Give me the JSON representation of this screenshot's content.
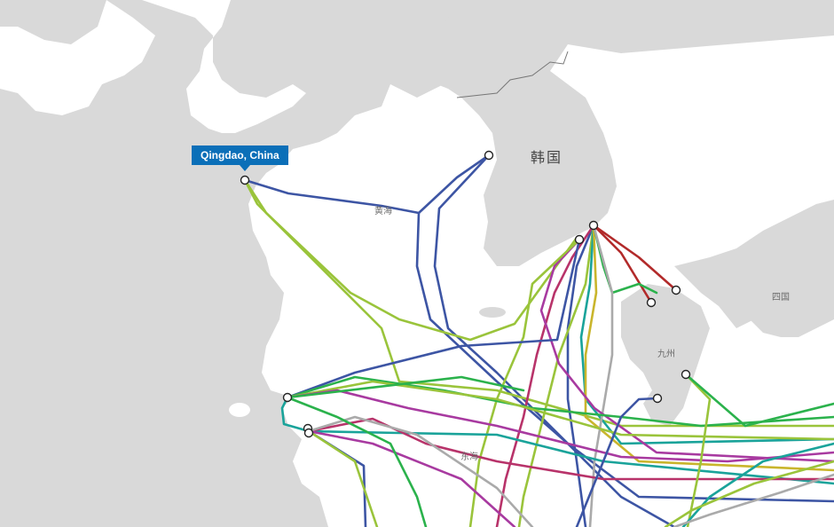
{
  "labels": {
    "korea": "韩国",
    "yellow_sea": "黄海",
    "east_china_sea": "东海",
    "shikoku": "四国",
    "kyushu": "九州"
  },
  "tooltip": {
    "text": "Qingdao, China"
  },
  "colors": {
    "land": "#d9d9d9",
    "sea": "#ffffff",
    "tooltip": "#0b6fb8",
    "cables": [
      "#3d55a4",
      "#9ac43b",
      "#2bb24c",
      "#1aa39a",
      "#b8336a",
      "#a83aa0",
      "#b22a2a",
      "#c9b52c",
      "#aaaaaa"
    ]
  }
}
